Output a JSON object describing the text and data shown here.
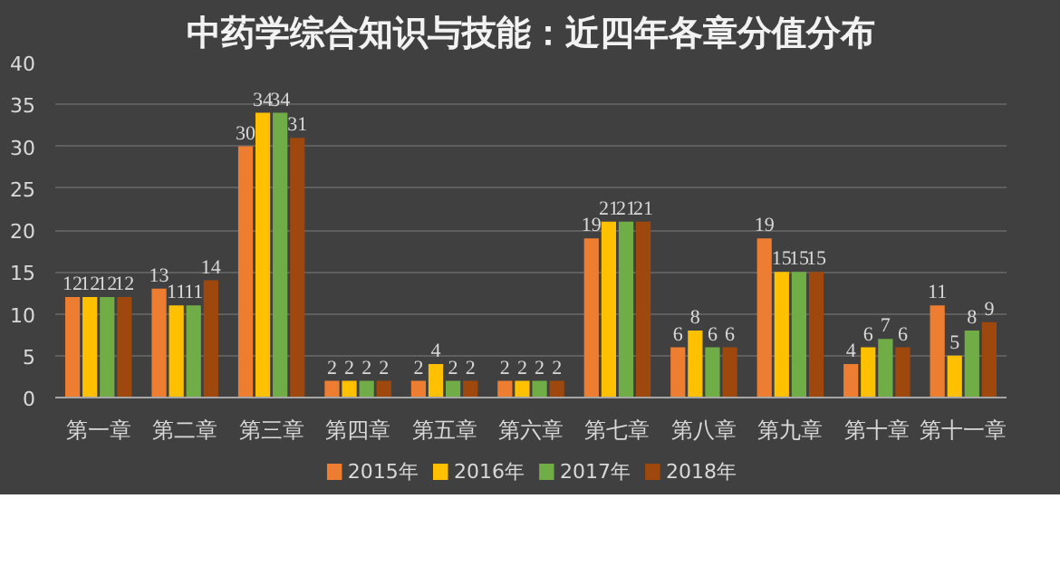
{
  "chart_data": {
    "type": "bar",
    "title": "中药学综合知识与技能：近四年各章分值分布",
    "categories": [
      "第一章",
      "第二章",
      "第三章",
      "第四章",
      "第五章",
      "第六章",
      "第七章",
      "第八章",
      "第九章",
      "第十章",
      "第十一章"
    ],
    "series": [
      {
        "name": "2015年",
        "color": "#ed7d31",
        "values": [
          12,
          13,
          30,
          2,
          2,
          2,
          19,
          6,
          19,
          4,
          11
        ]
      },
      {
        "name": "2016年",
        "color": "#ffc000",
        "values": [
          12,
          11,
          34,
          2,
          4,
          2,
          21,
          8,
          15,
          6,
          5
        ]
      },
      {
        "name": "2017年",
        "color": "#70ad47",
        "values": [
          12,
          11,
          34,
          2,
          2,
          2,
          21,
          6,
          15,
          7,
          8
        ]
      },
      {
        "name": "2018年",
        "color": "#9e480e",
        "values": [
          12,
          14,
          31,
          2,
          2,
          2,
          21,
          6,
          15,
          6,
          9
        ]
      }
    ],
    "ylim": [
      0,
      40
    ],
    "yticks": [
      0,
      5,
      10,
      15,
      20,
      25,
      30,
      35,
      40
    ],
    "grid": "y",
    "legend": "bottom",
    "data_labels": true
  }
}
